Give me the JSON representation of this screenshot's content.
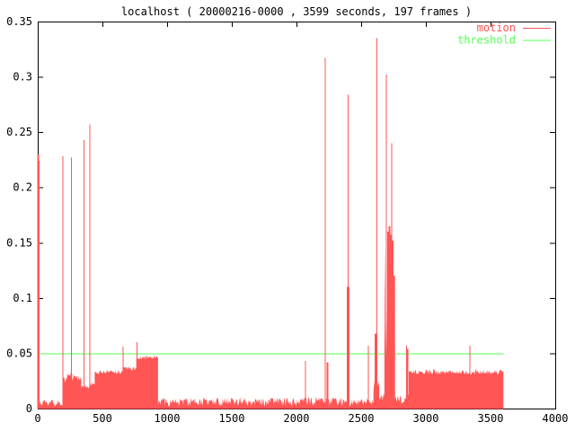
{
  "title": "localhost ( 20000216-0000 , 3599 seconds, 197 frames )",
  "legend": [
    {
      "label": "motion",
      "color": "#ff5555"
    },
    {
      "label": "threshold",
      "color": "#55ff55"
    }
  ],
  "colors": {
    "motion": "#ff5555",
    "threshold": "#55ff55",
    "axis": "#000000",
    "background": "#ffffff"
  },
  "chart_data": {
    "type": "area",
    "title": "localhost ( 20000216-0000 , 3599 seconds, 197 frames )",
    "xlabel": "",
    "ylabel": "",
    "x_range": [
      0,
      4000
    ],
    "y_range": [
      0,
      0.35
    ],
    "x_ticks": [
      "0",
      "500",
      "1000",
      "1500",
      "2000",
      "2500",
      "3000",
      "3500",
      "4000"
    ],
    "y_ticks": [
      "0",
      "0.05",
      "0.1",
      "0.15",
      "0.2",
      "0.25",
      "0.3",
      "0.35"
    ],
    "grid": false,
    "legend_position": "top-right-inside",
    "duration_seconds": 3599,
    "frames": 197,
    "series": [
      {
        "name": "motion",
        "color": "#ff5555",
        "style": "filled-impulses",
        "baseline_segments": [
          [
            0,
            192,
            0.005,
            0.003
          ],
          [
            192,
            228,
            0.026,
            0.003
          ],
          [
            228,
            266,
            0.032,
            0.003
          ],
          [
            266,
            336,
            0.027,
            0.003
          ],
          [
            336,
            402,
            0.019,
            0.002
          ],
          [
            402,
            440,
            0.022,
            0.002
          ],
          [
            440,
            656,
            0.033,
            0.002
          ],
          [
            656,
            762,
            0.036,
            0.002
          ],
          [
            762,
            930,
            0.046,
            0.002
          ],
          [
            930,
            2060,
            0.006,
            0.004
          ],
          [
            2060,
            2210,
            0.007,
            0.004
          ],
          [
            2210,
            2595,
            0.006,
            0.004
          ],
          [
            2595,
            2640,
            0.018,
            0.009
          ],
          [
            2640,
            2680,
            0.01,
            0.005
          ],
          [
            2680,
            2762,
            0.095,
            0.055
          ],
          [
            2762,
            2845,
            0.008,
            0.004
          ],
          [
            2845,
            2868,
            0.012,
            0.007
          ],
          [
            2868,
            3599,
            0.033,
            0.0025
          ]
        ],
        "spikes": [
          [
            3,
            0.23,
            2
          ],
          [
            10,
            0.224,
            1
          ],
          [
            196,
            0.228,
            1
          ],
          [
            262,
            0.227,
            1
          ],
          [
            356,
            0.243,
            1
          ],
          [
            404,
            0.257,
            1
          ],
          [
            660,
            0.056,
            1
          ],
          [
            766,
            0.06,
            1
          ],
          [
            2069,
            0.043,
            1
          ],
          [
            2222,
            0.317,
            1
          ],
          [
            2238,
            0.042,
            2
          ],
          [
            2400,
            0.11,
            3
          ],
          [
            2400,
            0.284,
            1
          ],
          [
            2556,
            0.057,
            1
          ],
          [
            2612,
            0.068,
            2
          ],
          [
            2620,
            0.335,
            1
          ],
          [
            2694,
            0.302,
            1
          ],
          [
            2710,
            0.16,
            2
          ],
          [
            2718,
            0.165,
            2
          ],
          [
            2726,
            0.157,
            2
          ],
          [
            2736,
            0.24,
            1
          ],
          [
            2744,
            0.152,
            2
          ],
          [
            2752,
            0.12,
            2
          ],
          [
            2852,
            0.057,
            1
          ],
          [
            2858,
            0.054,
            2
          ],
          [
            3340,
            0.057,
            1
          ]
        ]
      },
      {
        "name": "threshold",
        "color": "#55ff55",
        "style": "line",
        "value": 0.05,
        "x_extent": [
          0,
          3599
        ]
      }
    ]
  }
}
